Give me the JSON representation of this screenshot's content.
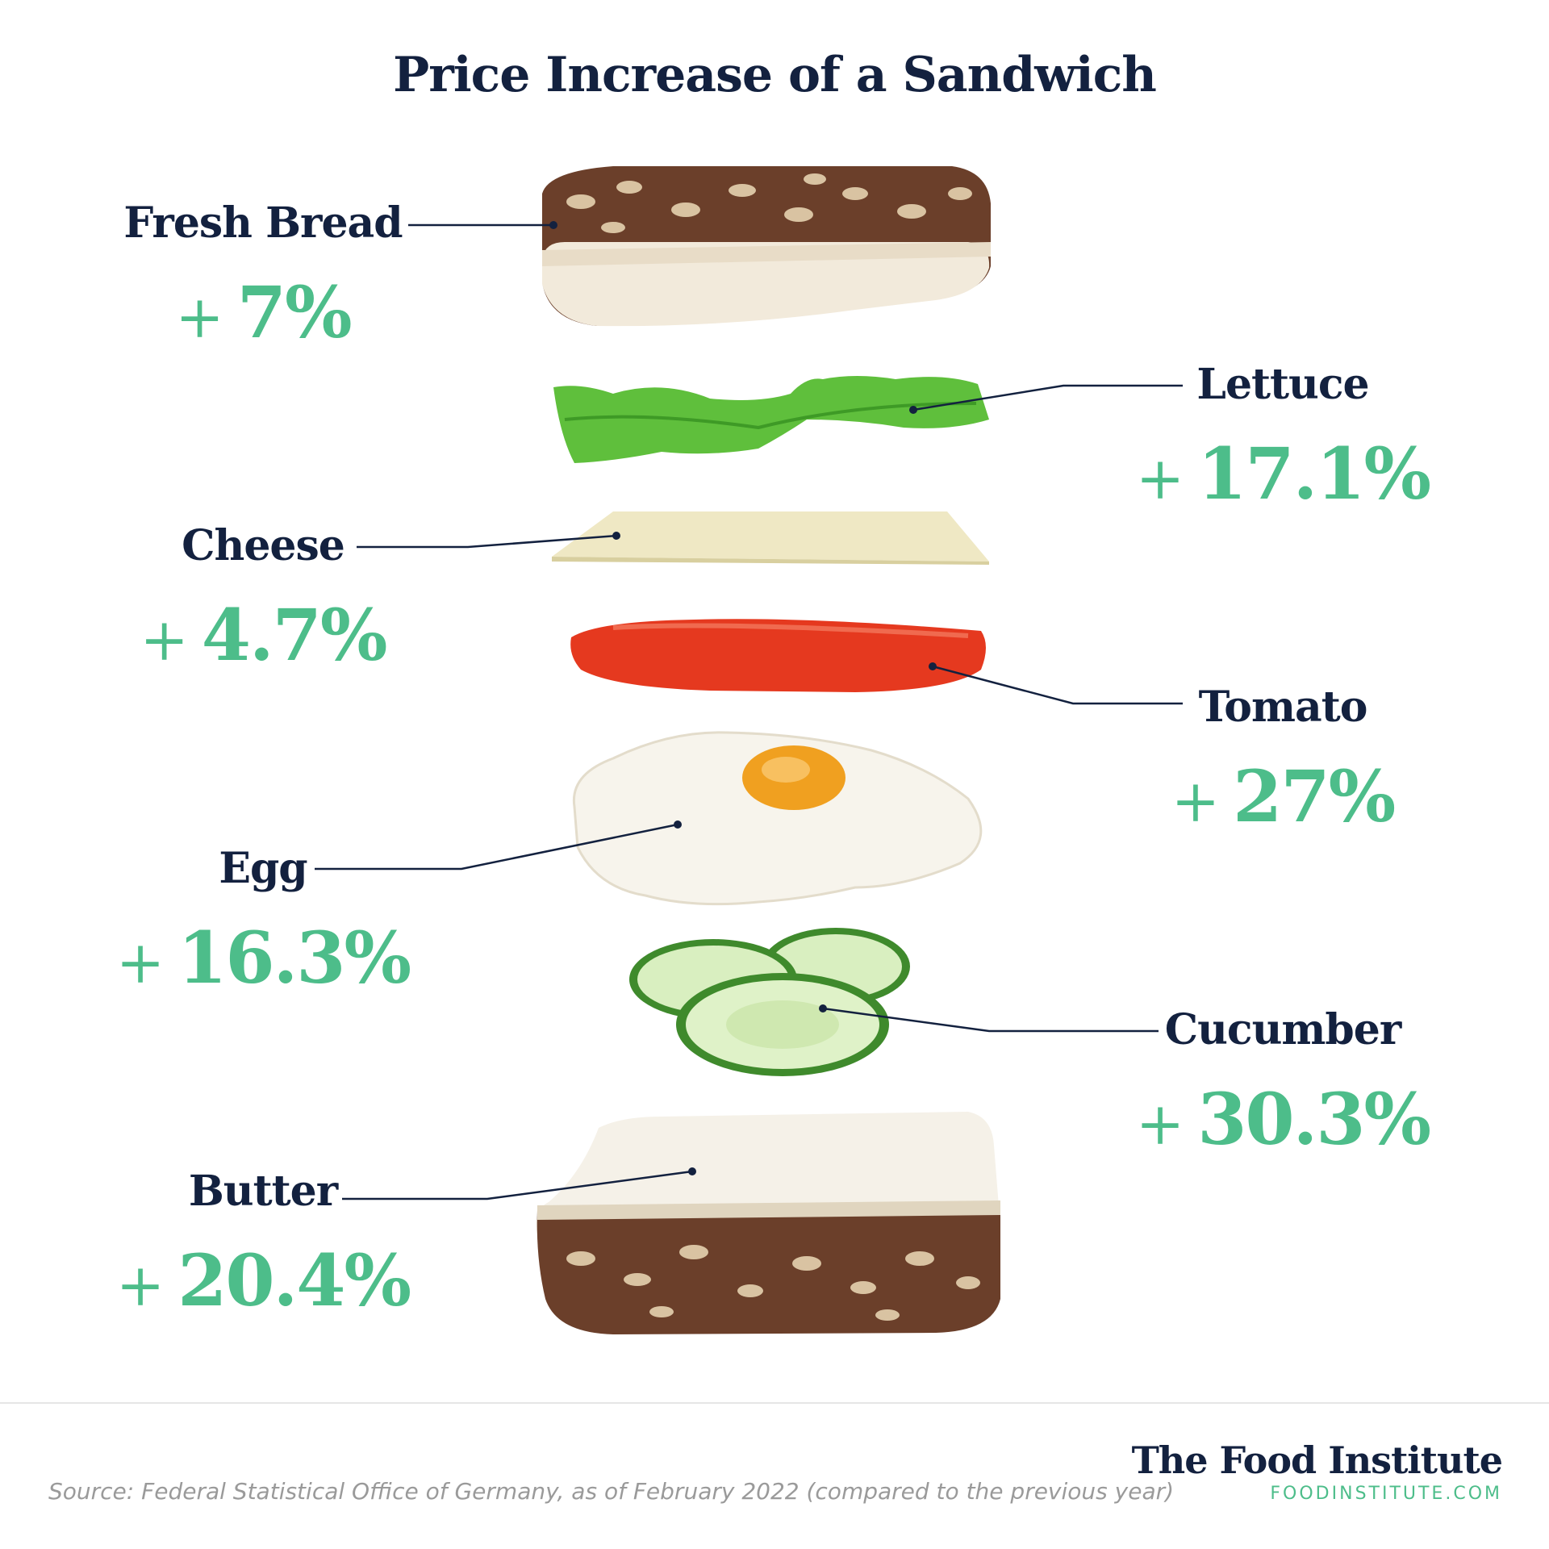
{
  "title": "Price Increase of a Sandwich",
  "chart_data": {
    "type": "table",
    "title": "Price Increase of a Sandwich",
    "categories": [
      "Fresh Bread",
      "Lettuce",
      "Cheese",
      "Tomato",
      "Egg",
      "Cucumber",
      "Butter"
    ],
    "values": [
      7,
      17.1,
      4.7,
      27,
      16.3,
      30.3,
      20.4
    ],
    "unit": "%",
    "items": [
      {
        "name": "Fresh Bread",
        "value": 7,
        "display": "7%",
        "side": "left"
      },
      {
        "name": "Lettuce",
        "value": 17.1,
        "display": "17.1%",
        "side": "right"
      },
      {
        "name": "Cheese",
        "value": 4.7,
        "display": "4.7%",
        "side": "left"
      },
      {
        "name": "Tomato",
        "value": 27,
        "display": "27%",
        "side": "right"
      },
      {
        "name": "Egg",
        "value": 16.3,
        "display": "16.3%",
        "side": "left"
      },
      {
        "name": "Cucumber",
        "value": 30.3,
        "display": "30.3%",
        "side": "right"
      },
      {
        "name": "Butter",
        "value": 20.4,
        "display": "20.4%",
        "side": "left"
      }
    ]
  },
  "plus_sign": "+",
  "source": "Source: Federal Statistical Office of Germany, as of February 2022 (compared to the previous year)",
  "brand": {
    "name": "The Food Institute",
    "url": "FOODINSTITUTE.COM"
  },
  "colors": {
    "navy": "#13213f",
    "green": "#4dbd8a",
    "source": "#9a9a9a"
  },
  "icons": [
    "bread-slice-top-illustration",
    "lettuce-illustration",
    "cheese-slice-illustration",
    "tomato-slice-illustration",
    "fried-egg-illustration",
    "cucumber-slices-illustration",
    "bread-slice-butter-illustration"
  ]
}
